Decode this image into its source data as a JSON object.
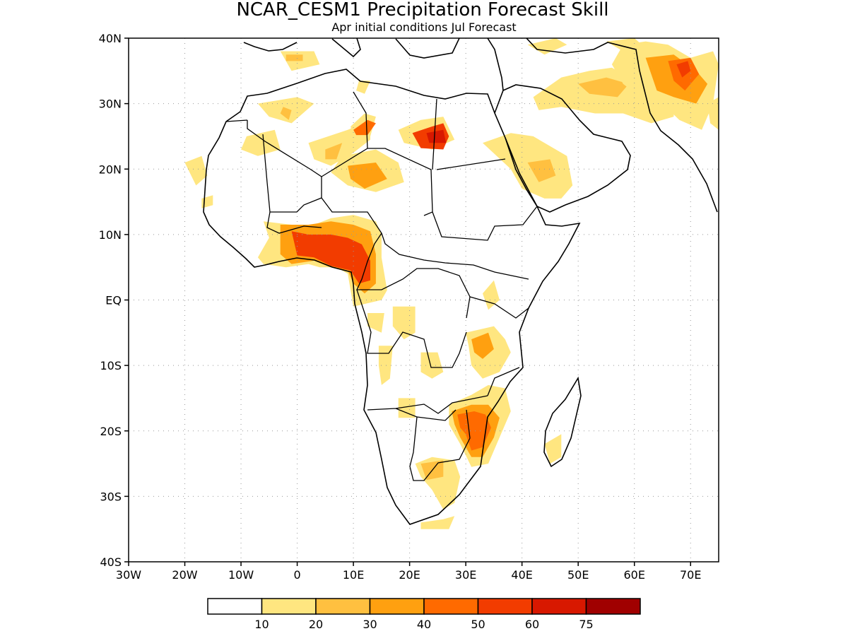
{
  "header": {
    "title": "NCAR_CESM1 Precipitation Forecast Skill",
    "subtitle": "Apr initial conditions  Jul Forecast"
  },
  "map": {
    "projection": "lat-lon",
    "lon_range": [
      -30,
      75
    ],
    "lat_range": [
      -40,
      40
    ],
    "grid": "dotted",
    "lat_ticks": [
      {
        "value": 40,
        "label": "40N"
      },
      {
        "value": 30,
        "label": "30N"
      },
      {
        "value": 20,
        "label": "20N"
      },
      {
        "value": 10,
        "label": "10N"
      },
      {
        "value": 0,
        "label": "EQ"
      },
      {
        "value": -10,
        "label": "10S"
      },
      {
        "value": -20,
        "label": "20S"
      },
      {
        "value": -30,
        "label": "30S"
      },
      {
        "value": -40,
        "label": "40S"
      }
    ],
    "lon_ticks": [
      {
        "value": -30,
        "label": "30W"
      },
      {
        "value": -20,
        "label": "20W"
      },
      {
        "value": -10,
        "label": "10W"
      },
      {
        "value": 0,
        "label": "0"
      },
      {
        "value": 10,
        "label": "10E"
      },
      {
        "value": 20,
        "label": "20E"
      },
      {
        "value": 30,
        "label": "30E"
      },
      {
        "value": 40,
        "label": "40E"
      },
      {
        "value": 50,
        "label": "50E"
      },
      {
        "value": 60,
        "label": "60E"
      },
      {
        "value": 70,
        "label": "70E"
      }
    ]
  },
  "colorbar": {
    "colors": [
      "#ffffff",
      "#ffe680",
      "#ffc040",
      "#ffa010",
      "#ff6a00",
      "#f23c00",
      "#d81800",
      "#a00000"
    ],
    "labels": [
      "10",
      "20",
      "30",
      "40",
      "50",
      "60",
      "75"
    ]
  },
  "skill_regions": [
    {
      "level": 1,
      "pts": [
        [
          -3,
          38
        ],
        [
          3,
          38
        ],
        [
          4,
          36
        ],
        [
          -1,
          35
        ]
      ]
    },
    {
      "level": 2,
      "pts": [
        [
          -2,
          37.5
        ],
        [
          1,
          37.5
        ],
        [
          1,
          36.5
        ],
        [
          -2,
          36.5
        ]
      ]
    },
    {
      "level": 1,
      "pts": [
        [
          11,
          33.5
        ],
        [
          13,
          33.5
        ],
        [
          12,
          31.5
        ],
        [
          10.5,
          32
        ]
      ]
    },
    {
      "level": 1,
      "pts": [
        [
          -7,
          30
        ],
        [
          0,
          31
        ],
        [
          3,
          30
        ],
        [
          -1,
          27
        ],
        [
          -5,
          28
        ]
      ]
    },
    {
      "level": 2,
      "pts": [
        [
          -2.5,
          29.5
        ],
        [
          -1,
          29
        ],
        [
          -1.5,
          27.5
        ],
        [
          -3,
          28.5
        ]
      ]
    },
    {
      "level": 1,
      "pts": [
        [
          2,
          24
        ],
        [
          9,
          26
        ],
        [
          13,
          27.5
        ],
        [
          13,
          24.5
        ],
        [
          10,
          22.5
        ],
        [
          6,
          20.5
        ],
        [
          3,
          21.5
        ]
      ]
    },
    {
      "level": 2,
      "pts": [
        [
          5,
          23
        ],
        [
          8,
          24
        ],
        [
          7,
          21.5
        ],
        [
          5,
          21.5
        ]
      ]
    },
    {
      "level": 1,
      "pts": [
        [
          9.5,
          26.5
        ],
        [
          12,
          28.5
        ],
        [
          14,
          28
        ],
        [
          13,
          25
        ],
        [
          10,
          25
        ]
      ]
    },
    {
      "level": 4,
      "pts": [
        [
          10,
          26
        ],
        [
          12.5,
          27.5
        ],
        [
          14,
          27
        ],
        [
          12.5,
          25.2
        ],
        [
          10.5,
          25.2
        ]
      ]
    },
    {
      "level": 1,
      "pts": [
        [
          8,
          22
        ],
        [
          14,
          23
        ],
        [
          18,
          21
        ],
        [
          19,
          18
        ],
        [
          14,
          16.5
        ],
        [
          9,
          17.5
        ],
        [
          6,
          19.5
        ]
      ]
    },
    {
      "level": 3,
      "pts": [
        [
          9,
          20.5
        ],
        [
          14,
          21
        ],
        [
          16,
          18.5
        ],
        [
          12,
          17
        ],
        [
          9.5,
          18.5
        ]
      ]
    },
    {
      "level": 1,
      "pts": [
        [
          18,
          26
        ],
        [
          22,
          27.5
        ],
        [
          26,
          28
        ],
        [
          28,
          24.5
        ],
        [
          24,
          23
        ],
        [
          19,
          24
        ]
      ]
    },
    {
      "level": 5,
      "pts": [
        [
          20.5,
          25.5
        ],
        [
          24,
          26.5
        ],
        [
          26,
          27
        ],
        [
          27,
          25
        ],
        [
          26,
          23
        ],
        [
          22,
          23.2
        ]
      ]
    },
    {
      "level": 6,
      "pts": [
        [
          23,
          25.5
        ],
        [
          26,
          26
        ],
        [
          26.5,
          24
        ],
        [
          23.5,
          24
        ]
      ]
    },
    {
      "level": 1,
      "pts": [
        [
          -20,
          21
        ],
        [
          -17,
          22
        ],
        [
          -16,
          19
        ],
        [
          -18,
          17.5
        ]
      ]
    },
    {
      "level": 1,
      "pts": [
        [
          -9,
          25
        ],
        [
          -4,
          26
        ],
        [
          -3,
          23
        ],
        [
          -7,
          22
        ],
        [
          -10,
          23
        ]
      ]
    },
    {
      "level": 1,
      "pts": [
        [
          -17,
          15.5
        ],
        [
          -15,
          16
        ],
        [
          -15,
          14.5
        ],
        [
          -17,
          14
        ]
      ]
    },
    {
      "level": 1,
      "pts": [
        [
          -6,
          12
        ],
        [
          -1,
          11.5
        ],
        [
          3,
          11.5
        ],
        [
          6,
          12.5
        ],
        [
          10,
          13
        ],
        [
          14,
          12
        ],
        [
          15,
          10
        ],
        [
          15,
          6.5
        ],
        [
          16,
          1.5
        ],
        [
          15,
          0
        ],
        [
          10,
          -1
        ],
        [
          9,
          4
        ],
        [
          7,
          5
        ],
        [
          4,
          5
        ],
        [
          2,
          5.5
        ],
        [
          -2,
          5
        ],
        [
          -6,
          5.5
        ],
        [
          -7,
          6.5
        ],
        [
          -5,
          9.5
        ]
      ]
    },
    {
      "level": 3,
      "pts": [
        [
          -3,
          11.5
        ],
        [
          2,
          11.5
        ],
        [
          6,
          12
        ],
        [
          10,
          11.5
        ],
        [
          13,
          10.5
        ],
        [
          14,
          7
        ],
        [
          14,
          2.5
        ],
        [
          12,
          1
        ],
        [
          10,
          2.5
        ],
        [
          9,
          4.5
        ],
        [
          6,
          5
        ],
        [
          3,
          6
        ],
        [
          -1,
          5.5
        ],
        [
          -3,
          7
        ]
      ]
    },
    {
      "level": 5,
      "pts": [
        [
          -1,
          10.5
        ],
        [
          2,
          10
        ],
        [
          6,
          10
        ],
        [
          9,
          9.5
        ],
        [
          11.5,
          8.5
        ],
        [
          13,
          6
        ],
        [
          13,
          3
        ],
        [
          11,
          2.5
        ],
        [
          9.5,
          4.5
        ],
        [
          6,
          5.2
        ],
        [
          3,
          6.5
        ],
        [
          0,
          6.8
        ]
      ]
    },
    {
      "level": 1,
      "pts": [
        [
          33,
          24
        ],
        [
          38,
          25.5
        ],
        [
          42,
          25
        ],
        [
          48,
          22
        ],
        [
          49,
          17.5
        ],
        [
          47,
          15.5
        ],
        [
          44,
          15.5
        ],
        [
          40,
          17
        ],
        [
          38,
          20
        ]
      ]
    },
    {
      "level": 2,
      "pts": [
        [
          41,
          21
        ],
        [
          45,
          21.5
        ],
        [
          46,
          19
        ],
        [
          43,
          18
        ]
      ]
    },
    {
      "level": 1,
      "pts": [
        [
          42,
          31
        ],
        [
          47,
          34
        ],
        [
          52,
          35
        ],
        [
          56,
          35.5
        ],
        [
          59,
          34
        ],
        [
          64,
          33
        ],
        [
          67,
          31
        ],
        [
          67,
          28
        ],
        [
          63,
          27
        ],
        [
          58,
          28.5
        ],
        [
          53,
          28.5
        ],
        [
          47,
          29.5
        ],
        [
          43,
          29
        ]
      ]
    },
    {
      "level": 2,
      "pts": [
        [
          50,
          33
        ],
        [
          55,
          34
        ],
        [
          59,
          33
        ],
        [
          57,
          31
        ],
        [
          52,
          31.5
        ]
      ]
    },
    {
      "level": 1,
      "pts": [
        [
          58,
          39
        ],
        [
          62,
          39.5
        ],
        [
          66,
          39
        ],
        [
          70,
          37
        ],
        [
          74,
          38
        ],
        [
          75,
          36
        ],
        [
          74,
          30
        ],
        [
          72,
          26
        ],
        [
          68,
          27.5
        ],
        [
          65,
          30
        ],
        [
          61,
          31
        ],
        [
          58,
          33
        ],
        [
          56,
          36
        ]
      ]
    },
    {
      "level": 3,
      "pts": [
        [
          62,
          37
        ],
        [
          67,
          37.5
        ],
        [
          71,
          35
        ],
        [
          73,
          33
        ],
        [
          71,
          30
        ],
        [
          67,
          31
        ],
        [
          64,
          32
        ]
      ]
    },
    {
      "level": 4,
      "pts": [
        [
          66,
          36.5
        ],
        [
          70,
          37
        ],
        [
          71.5,
          34.5
        ],
        [
          69,
          32
        ],
        [
          67,
          33.5
        ]
      ]
    },
    {
      "level": 5,
      "pts": [
        [
          67.5,
          36
        ],
        [
          69.5,
          36.5
        ],
        [
          70,
          35
        ],
        [
          68.5,
          34
        ]
      ]
    },
    {
      "level": 1,
      "pts": [
        [
          55,
          39.5
        ],
        [
          60,
          40
        ],
        [
          62,
          38.5
        ],
        [
          58,
          38
        ]
      ]
    },
    {
      "level": 1,
      "pts": [
        [
          73,
          30
        ],
        [
          75,
          31
        ],
        [
          75,
          26
        ],
        [
          73.5,
          27
        ]
      ]
    },
    {
      "level": 1,
      "pts": [
        [
          41,
          39
        ],
        [
          46,
          40
        ],
        [
          48,
          39
        ],
        [
          44,
          37.5
        ]
      ]
    },
    {
      "level": 1,
      "pts": [
        [
          33,
          1
        ],
        [
          35,
          3
        ],
        [
          36,
          0
        ],
        [
          34,
          -1.5
        ]
      ]
    },
    {
      "level": 1,
      "pts": [
        [
          30,
          -5
        ],
        [
          35,
          -4
        ],
        [
          37,
          -6
        ],
        [
          38,
          -8
        ],
        [
          36,
          -11
        ],
        [
          33,
          -12
        ],
        [
          31,
          -10
        ],
        [
          30.5,
          -7
        ]
      ]
    },
    {
      "level": 3,
      "pts": [
        [
          31,
          -6
        ],
        [
          34,
          -5
        ],
        [
          35,
          -7.5
        ],
        [
          33,
          -9
        ],
        [
          31.5,
          -8
        ]
      ]
    },
    {
      "level": 1,
      "pts": [
        [
          27,
          -16
        ],
        [
          31,
          -14.5
        ],
        [
          34,
          -13
        ],
        [
          37,
          -13.5
        ],
        [
          38,
          -17
        ],
        [
          36,
          -21
        ],
        [
          34,
          -25
        ],
        [
          31,
          -25.5
        ],
        [
          29,
          -22
        ],
        [
          27,
          -19
        ]
      ]
    },
    {
      "level": 3,
      "pts": [
        [
          27.5,
          -17
        ],
        [
          31,
          -16
        ],
        [
          34,
          -16
        ],
        [
          36,
          -18
        ],
        [
          35,
          -21
        ],
        [
          33,
          -24
        ],
        [
          31,
          -24
        ],
        [
          29,
          -21
        ],
        [
          28,
          -19
        ]
      ]
    },
    {
      "level": 4,
      "pts": [
        [
          28.5,
          -17.5
        ],
        [
          31.5,
          -17
        ],
        [
          33.5,
          -17.5
        ],
        [
          34.5,
          -19.5
        ],
        [
          33,
          -22.5
        ],
        [
          31,
          -23
        ],
        [
          30,
          -20.5
        ],
        [
          29,
          -19.5
        ]
      ]
    },
    {
      "level": 1,
      "pts": [
        [
          22,
          -8
        ],
        [
          25,
          -8
        ],
        [
          26,
          -11
        ],
        [
          24,
          -12
        ],
        [
          22,
          -11
        ]
      ]
    },
    {
      "level": 1,
      "pts": [
        [
          12.5,
          -2
        ],
        [
          15.5,
          -2
        ],
        [
          15,
          -5
        ],
        [
          12.5,
          -4
        ]
      ]
    },
    {
      "level": 1,
      "pts": [
        [
          17,
          -1
        ],
        [
          21,
          -1
        ],
        [
          21,
          -5
        ],
        [
          19,
          -6
        ],
        [
          17,
          -4
        ]
      ]
    },
    {
      "level": 1,
      "pts": [
        [
          14.5,
          -7
        ],
        [
          17,
          -7
        ],
        [
          16.5,
          -12
        ],
        [
          15,
          -13
        ],
        [
          14.5,
          -10
        ]
      ]
    },
    {
      "level": 1,
      "pts": [
        [
          18,
          -15
        ],
        [
          21,
          -15
        ],
        [
          21,
          -18
        ],
        [
          18,
          -18
        ]
      ]
    },
    {
      "level": 1,
      "pts": [
        [
          21,
          -25
        ],
        [
          24,
          -24
        ],
        [
          28,
          -24.5
        ],
        [
          29,
          -27
        ],
        [
          28,
          -31
        ],
        [
          26,
          -32
        ],
        [
          24,
          -29
        ],
        [
          22,
          -27
        ]
      ]
    },
    {
      "level": 2,
      "pts": [
        [
          22,
          -25
        ],
        [
          26,
          -24.5
        ],
        [
          26,
          -27
        ],
        [
          23,
          -27.5
        ]
      ]
    },
    {
      "level": 1,
      "pts": [
        [
          22,
          -34
        ],
        [
          26,
          -33.5
        ],
        [
          28,
          -33
        ],
        [
          27,
          -35
        ],
        [
          22,
          -35
        ]
      ]
    },
    {
      "level": 1,
      "pts": [
        [
          44,
          -22
        ],
        [
          47,
          -20.5
        ],
        [
          47,
          -24
        ],
        [
          45,
          -25
        ]
      ]
    }
  ]
}
